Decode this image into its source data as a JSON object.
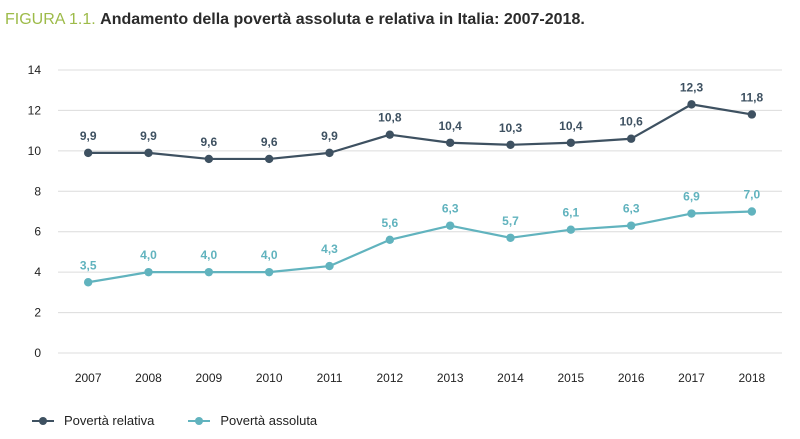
{
  "figure": {
    "number": "FIGURA 1.1.",
    "title": "Andamento della povertà assoluta e relativa in Italia: 2007-2018."
  },
  "colors": {
    "relativa": "#3e5161",
    "assoluta": "#61b3be",
    "grid": "#dcdcdc",
    "figure_number": "#9dbb49"
  },
  "chart_data": {
    "type": "line",
    "title": "Andamento della povertà assoluta e relativa in Italia: 2007-2018.",
    "x": [
      "2007",
      "2008",
      "2009",
      "2010",
      "2011",
      "2012",
      "2013",
      "2014",
      "2015",
      "2016",
      "2017",
      "2018"
    ],
    "ylim": [
      0,
      14
    ],
    "yticks": [
      "0",
      "2",
      "4",
      "6",
      "8",
      "10",
      "12",
      "14"
    ],
    "grid": "horizontal",
    "legend_position": "bottom-left",
    "series": [
      {
        "name": "Povertà relativa",
        "values": [
          9.9,
          9.9,
          9.6,
          9.6,
          9.9,
          10.8,
          10.4,
          10.3,
          10.4,
          10.6,
          12.3,
          11.8
        ],
        "labels": [
          "9,9",
          "9,9",
          "9,6",
          "9,6",
          "9,9",
          "10,8",
          "10,4",
          "10,3",
          "10,4",
          "10,6",
          "12,3",
          "11,8"
        ]
      },
      {
        "name": "Povertà assoluta",
        "values": [
          3.5,
          4.0,
          4.0,
          4.0,
          4.3,
          5.6,
          6.3,
          5.7,
          6.1,
          6.3,
          6.9,
          7.0
        ],
        "labels": [
          "3,5",
          "4,0",
          "4,0",
          "4,0",
          "4,3",
          "5,6",
          "6,3",
          "5,7",
          "6,1",
          "6,3",
          "6,9",
          "7,0"
        ]
      }
    ]
  },
  "legend": {
    "items": [
      {
        "label": "Povertà relativa"
      },
      {
        "label": "Povertà assoluta"
      }
    ]
  }
}
